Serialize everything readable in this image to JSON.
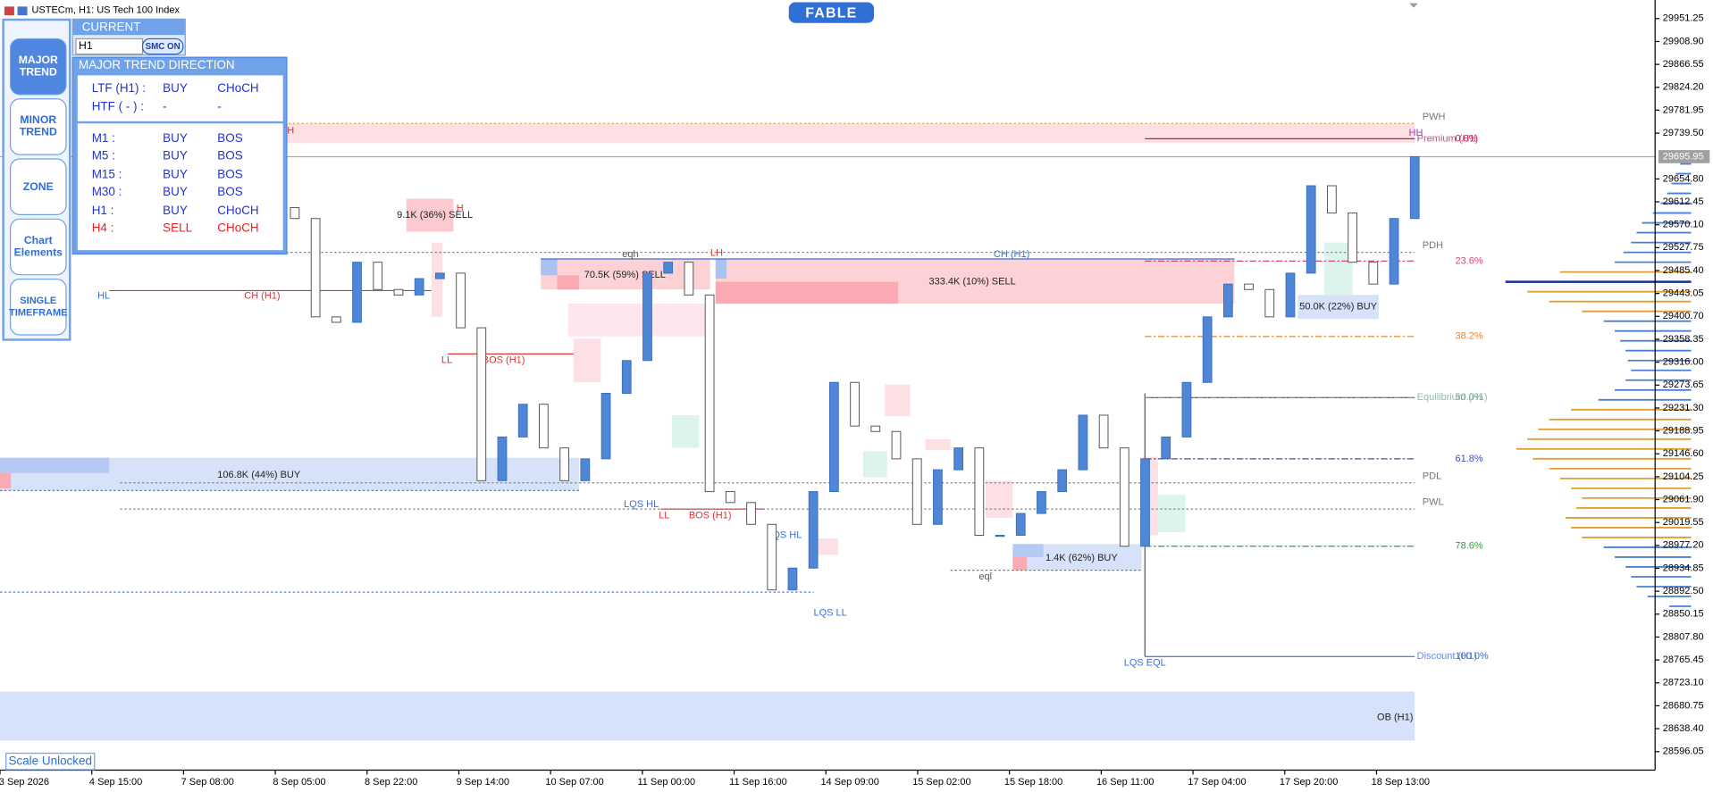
{
  "header": {
    "symbol": "USTECm, H1:  US Tech 100 Index",
    "brand": "FABLE"
  },
  "sidebar": {
    "buttons": [
      "MAJOR TREND",
      "MINOR TREND",
      "ZONE",
      "Chart Elements",
      "SINGLE TIMEFRAME"
    ]
  },
  "current_panel": {
    "title": "CURRENT",
    "timeframe": "H1",
    "smc": "SMC ON"
  },
  "trend_panel": {
    "title": "MAJOR TREND DIRECTION",
    "summary": [
      [
        "LTF (H1) :",
        "BUY",
        "CHoCH"
      ],
      [
        "HTF ( - ) :",
        "-",
        "-"
      ]
    ],
    "rows": [
      [
        "M1 :",
        "BUY",
        "BOS"
      ],
      [
        "M5 :",
        "BUY",
        "BOS"
      ],
      [
        "M15 :",
        "BUY",
        "BOS"
      ],
      [
        "M30 :",
        "BUY",
        "BOS"
      ],
      [
        "H1 :",
        "BUY",
        "CHoCH"
      ],
      [
        "H4 :",
        "SELL",
        "CHoCH"
      ]
    ]
  },
  "scale_status": "Scale Unlocked",
  "chart_data": {
    "type": "candlestick",
    "up_color": "#4f86d6",
    "down_color": "#ffffff",
    "ylim": [
      28561.7,
      29985.6
    ],
    "yticks": [
      29951.25,
      {
        "value": 29908.9,
        "label": "29908.90"
      },
      29866.55,
      {
        "value": 29824.2,
        "label": "29824.20"
      },
      29781.95,
      {
        "value": 29739.5,
        "label": "29739.50"
      },
      {
        "value": 29654.8,
        "label": "29654.80"
      },
      29612.45,
      {
        "value": 29570.1,
        "label": "29570.10"
      },
      29527.75,
      {
        "value": 29485.4,
        "label": "29485.40"
      },
      29443.05,
      {
        "value": 29400.7,
        "label": "29400.70"
      },
      29358.35,
      {
        "value": 29316,
        "label": "29316.00"
      },
      29273.65,
      {
        "value": 29231.3,
        "label": "29231.30"
      },
      29188.95,
      {
        "value": 29146.6,
        "label": "29146.60"
      },
      29104.25,
      {
        "value": 29061.9,
        "label": "29061.90"
      },
      29019.55,
      {
        "value": 28977.2,
        "label": "28977.20"
      },
      28934.85,
      {
        "value": 28892.5,
        "label": "28892.50"
      },
      28850.15,
      {
        "value": 28807.8,
        "label": "28807.80"
      },
      28765.45,
      {
        "value": 28723.1,
        "label": "28723.10"
      },
      28680.75,
      {
        "value": 28638.4,
        "label": "28638.40"
      },
      28596.05
    ],
    "current_price": 29695.95,
    "x_labels": [
      "3 Sep 2026",
      "4 Sep 15:00",
      "7 Sep 08:00",
      "8 Sep 05:00",
      "8 Sep 22:00",
      "9 Sep 14:00",
      "10 Sep 07:00",
      "11 Sep 00:00",
      "11 Sep 16:00",
      "14 Sep 09:00",
      "15 Sep 02:00",
      "15 Sep 18:00",
      "16 Sep 11:00",
      "17 Sep 04:00",
      "17 Sep 20:00",
      "18 Sep 13:00"
    ],
    "closes": [
      29521.0,
      29531.1,
      29561.4,
      29581.6,
      29541.2,
      29601.8,
      29642.2,
      29541.2,
      29581.6,
      29601.8,
      29581.6,
      29399.8,
      29389.7,
      29500.8,
      29450.3,
      29440.2,
      29470.5,
      29480.6,
      29379.6,
      29096.9,
      29177.7,
      29238.2,
      29157.5,
      29096.9,
      29137.3,
      29258.4,
      29319.0,
      29480.6,
      29500.8,
      29440.2,
      29076.7,
      29056.5,
      29016.1,
      28894.9,
      28935.3,
      29076.7,
      29278.6,
      29197.9,
      29187.8,
      29137.3,
      29016.1,
      29117.1,
      29157.5,
      28995.9,
      28995.9,
      29036.3,
      29076.7,
      29117.1,
      29218.0,
      29157.5,
      28975.7,
      29137.3,
      29177.7,
      29278.6,
      29399.8,
      29460.4,
      29450.3,
      29399.8,
      29480.6,
      29642.2,
      29591.7,
      29500.8,
      29460.4,
      29581.6,
      29695.95
    ],
    "fib_levels": [
      {
        "label": "0.0%",
        "name": "Premium (H1)",
        "price": 29729.1,
        "color": "#c2185b"
      },
      {
        "label": "23.6%",
        "price": 29502.9,
        "color": "#d9466b"
      },
      {
        "label": "38.2%",
        "price": 29363.5,
        "color": "#e8872a"
      },
      {
        "label": "50.0%",
        "name": "Equilibrium (H1)",
        "price": 29250.5,
        "color": "#7aa89a"
      },
      {
        "label": "61.8%",
        "price": 29137.3,
        "color": "#3f51b5"
      },
      {
        "label": "78.6%",
        "price": 28975.7,
        "color": "#2e9e44"
      },
      {
        "label": "100.0%",
        "name": "Discount (H1)",
        "price": 28771.7,
        "color": "#3f6fd0"
      }
    ],
    "key_levels": [
      {
        "label": "PWH",
        "price": 29757.4
      },
      {
        "label": "PDH",
        "price": 29519.1
      },
      {
        "label": "PDL",
        "price": 29092.9
      },
      {
        "label": "PWL",
        "price": 29044.4
      }
    ],
    "zones": [
      "9.1K (36%) SELL",
      "70.5K (59%) SELL",
      "333.4K (10%) SELL",
      "106.8K (44%) BUY",
      "1.4K (62%) BUY",
      "50.0K (22%) BUY",
      "OB (H1)"
    ],
    "annotations": [
      "HL",
      "CH (H1)",
      "LL",
      "BOS (H1)",
      "eqh",
      "LH",
      "CH (H1)",
      "LQS HL",
      "LL",
      "BOS (H1)",
      "LQS HL",
      "LQS LL",
      "eql",
      "LQS EQL",
      "HH",
      "H",
      "H"
    ],
    "volume_profile": {
      "values": [
        10,
        14,
        18,
        22,
        28,
        35,
        45,
        50,
        55,
        62,
        70,
        120,
        170,
        150,
        130,
        100,
        80,
        70,
        65,
        60,
        58,
        55,
        60,
        70,
        85,
        110,
        130,
        140,
        150,
        160,
        145,
        130,
        120,
        110,
        100,
        105,
        115,
        110,
        100,
        80,
        70,
        60,
        55,
        50,
        40,
        20
      ],
      "colors": [
        "#4a7fd6",
        "#4a7fd6",
        "#4a7fd6",
        "#4a7fd6",
        "#4a7fd6",
        "#4a7fd6",
        "#4a7fd6",
        "#4a7fd6",
        "#4a7fd6",
        "#4a7fd6",
        "#4a7fd6",
        "#e0a030",
        "#1a2f8f",
        "#e0a030",
        "#e0a030",
        "#e0a030",
        "#4a7fd6",
        "#4a7fd6",
        "#4a7fd6",
        "#4a7fd6",
        "#4a7fd6",
        "#4a7fd6",
        "#4a7fd6",
        "#4a7fd6",
        "#4a7fd6",
        "#e0a030",
        "#e0a030",
        "#e0a030",
        "#e0a030",
        "#e0a030",
        "#e0a030",
        "#e0a030",
        "#e0a030",
        "#e0a030",
        "#e0a030",
        "#e0a030",
        "#e0a030",
        "#e0a030",
        "#e0a030",
        "#4a7fd6",
        "#4a7fd6",
        "#4a7fd6",
        "#4a7fd6",
        "#4a7fd6",
        "#4a7fd6",
        "#4a7fd6"
      ]
    }
  }
}
